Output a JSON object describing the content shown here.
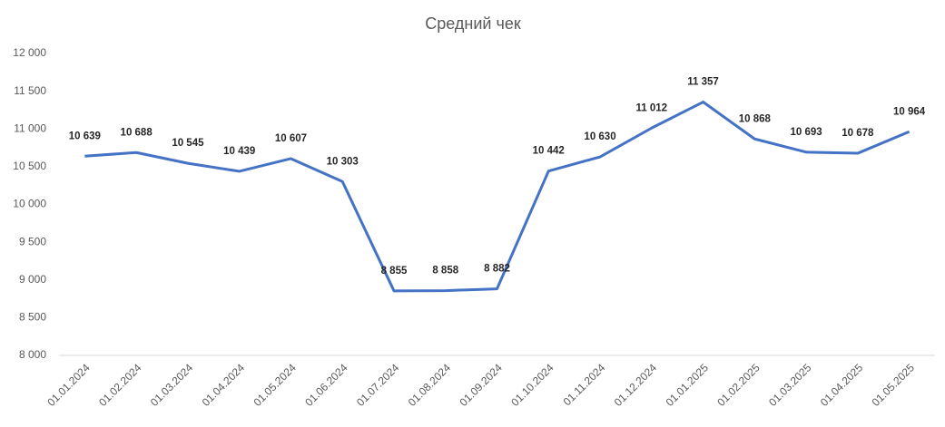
{
  "chart_data": {
    "type": "line",
    "title": "Средний чек",
    "categories": [
      "01.01.2024",
      "01.02.2024",
      "01.03.2024",
      "01.04.2024",
      "01.05.2024",
      "01.06.2024",
      "01.07.2024",
      "01.08.2024",
      "01.09.2024",
      "01.10.2024",
      "01.11.2024",
      "01.12.2024",
      "01.01.2025",
      "01.02.2025",
      "01.03.2025",
      "01.04.2025",
      "01.05.2025"
    ],
    "series": [
      {
        "color": "#4472c4",
        "values": [
          10639,
          10688,
          10545,
          10439,
          10607,
          10303,
          8855,
          8858,
          8882,
          10442,
          10630,
          11012,
          11357,
          10868,
          10693,
          10678,
          10964
        ],
        "value_labels": [
          "10 639",
          "10 688",
          "10 545",
          "10 439",
          "10 607",
          "10 303",
          "8 855",
          "8 858",
          "8 882",
          "10 442",
          "10 630",
          "11 012",
          "11 357",
          "10 868",
          "10 693",
          "10 678",
          "10 964"
        ]
      }
    ],
    "ylim": [
      8000,
      12000
    ],
    "yticks": [
      {
        "value": 8000,
        "label": "8 000"
      },
      {
        "value": 8500,
        "label": "8 500"
      },
      {
        "value": 9000,
        "label": "9 000"
      },
      {
        "value": 9500,
        "label": "9 500"
      },
      {
        "value": 10000,
        "label": "10 000"
      },
      {
        "value": 10500,
        "label": "10 500"
      },
      {
        "value": 11000,
        "label": "11 000"
      },
      {
        "value": 11500,
        "label": "11 500"
      },
      {
        "value": 12000,
        "label": "12 000"
      }
    ],
    "grid": false
  }
}
